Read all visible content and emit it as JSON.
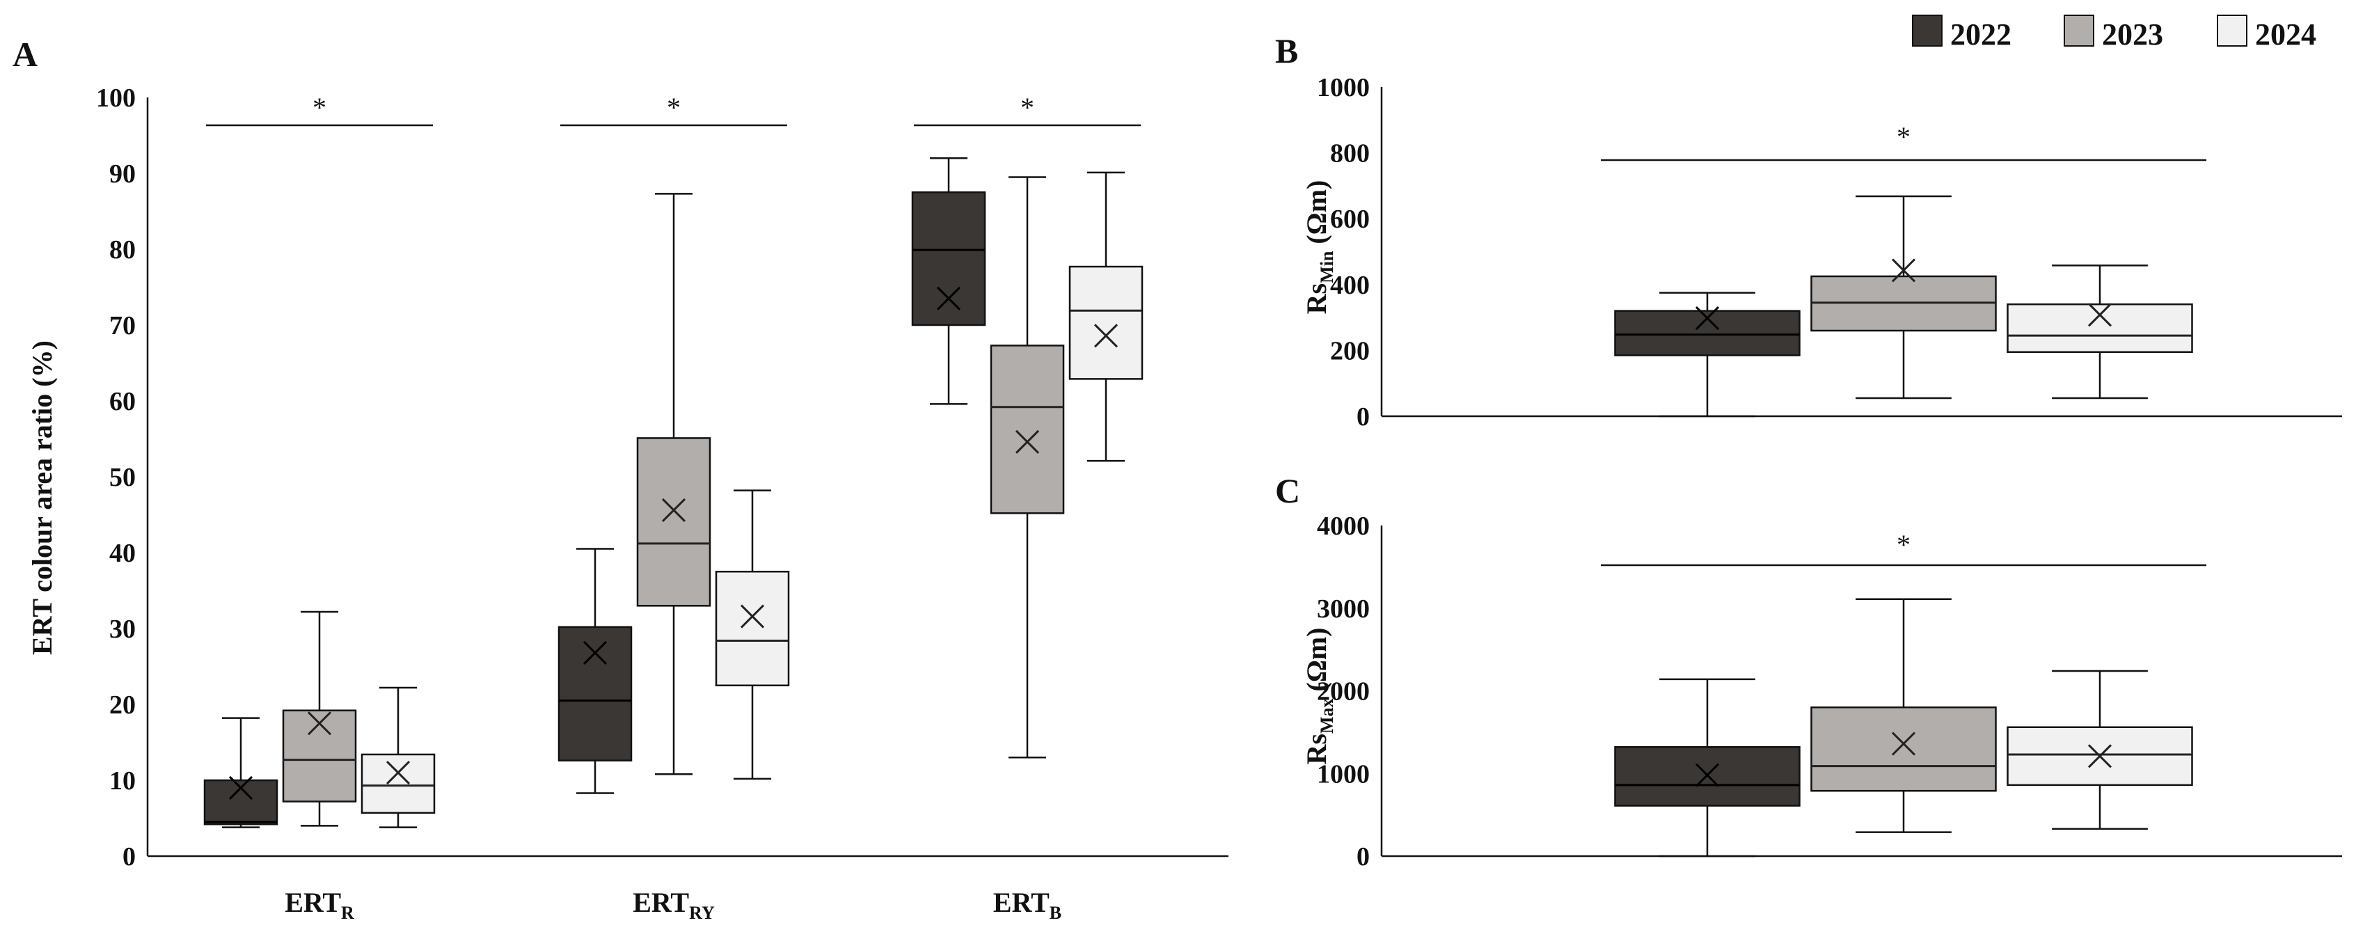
{
  "legend": [
    {
      "label": "2022",
      "color": "#3a3735"
    },
    {
      "label": "2023",
      "color": "#b2aeab"
    },
    {
      "label": "2024",
      "color": "#f1f1f1"
    }
  ],
  "chart_data": [
    {
      "panel": "A",
      "type": "box",
      "ylabel": "ERT colour area ratio (%)",
      "ylim": [
        0,
        100
      ],
      "yticks": [
        0,
        10,
        20,
        30,
        40,
        50,
        60,
        70,
        80,
        90,
        100
      ],
      "categories": [
        {
          "base": "ERT",
          "sub": "R"
        },
        {
          "base": "ERT",
          "sub": "RY"
        },
        {
          "base": "ERT",
          "sub": "B"
        }
      ],
      "significance": [
        "*",
        "*",
        "*"
      ],
      "series": [
        {
          "name": "2022",
          "boxes": [
            {
              "min": 3.8,
              "q1": 4.2,
              "median": 4.5,
              "q3": 10,
              "max": 18.2,
              "mean": 9
            },
            {
              "min": 8.3,
              "q1": 12.6,
              "median": 20.5,
              "q3": 30.2,
              "max": 40.5,
              "mean": 26.8
            },
            {
              "min": 59.6,
              "q1": 70,
              "median": 79.9,
              "q3": 87.5,
              "max": 92,
              "mean": 73.5
            }
          ]
        },
        {
          "name": "2023",
          "boxes": [
            {
              "min": 4,
              "q1": 7.2,
              "median": 12.7,
              "q3": 19.2,
              "max": 32.2,
              "mean": 17.5
            },
            {
              "min": 10.8,
              "q1": 33,
              "median": 41.2,
              "q3": 55.1,
              "max": 87.3,
              "mean": 45.6
            },
            {
              "min": 13,
              "q1": 45.2,
              "median": 59.2,
              "q3": 67.3,
              "max": 89.5,
              "mean": 54.6
            }
          ]
        },
        {
          "name": "2024",
          "boxes": [
            {
              "min": 3.8,
              "q1": 5.7,
              "median": 9.3,
              "q3": 13.4,
              "max": 22.2,
              "mean": 11
            },
            {
              "min": 10.2,
              "q1": 22.5,
              "median": 28.4,
              "q3": 37.5,
              "max": 48.2,
              "mean": 31.6
            },
            {
              "min": 52.1,
              "q1": 62.9,
              "median": 71.9,
              "q3": 77.7,
              "max": 90.1,
              "mean": 68.6
            }
          ]
        }
      ]
    },
    {
      "panel": "B",
      "type": "box",
      "ylabel_base": "Rs",
      "ylabel_sub": "Min",
      "ylabel_unit": " (Ωm)",
      "ylim": [
        0,
        1000
      ],
      "yticks": [
        0,
        200,
        400,
        600,
        800,
        1000
      ],
      "significance": "*",
      "series": [
        {
          "name": "2022",
          "box": {
            "min": 0,
            "q1": 185,
            "median": 248,
            "q3": 320,
            "max": 375,
            "mean": 298
          }
        },
        {
          "name": "2023",
          "box": {
            "min": 55,
            "q1": 260,
            "median": 345,
            "q3": 425,
            "max": 668,
            "mean": 443
          }
        },
        {
          "name": "2024",
          "box": {
            "min": 55,
            "q1": 195,
            "median": 245,
            "q3": 340,
            "max": 458,
            "mean": 308
          }
        }
      ]
    },
    {
      "panel": "C",
      "type": "box",
      "ylabel_base": "Rs",
      "ylabel_sub": "Max",
      "ylabel_unit": " (Ωm)",
      "ylim": [
        0,
        4000
      ],
      "yticks": [
        0,
        1000,
        2000,
        3000,
        4000
      ],
      "significance": "*",
      "series": [
        {
          "name": "2022",
          "box": {
            "min": 0,
            "q1": 610,
            "median": 860,
            "q3": 1320,
            "max": 2140,
            "mean": 980
          }
        },
        {
          "name": "2023",
          "box": {
            "min": 290,
            "q1": 790,
            "median": 1090,
            "q3": 1800,
            "max": 3110,
            "mean": 1360
          }
        },
        {
          "name": "2024",
          "box": {
            "min": 330,
            "q1": 860,
            "median": 1230,
            "q3": 1560,
            "max": 2240,
            "mean": 1210
          }
        }
      ]
    }
  ]
}
